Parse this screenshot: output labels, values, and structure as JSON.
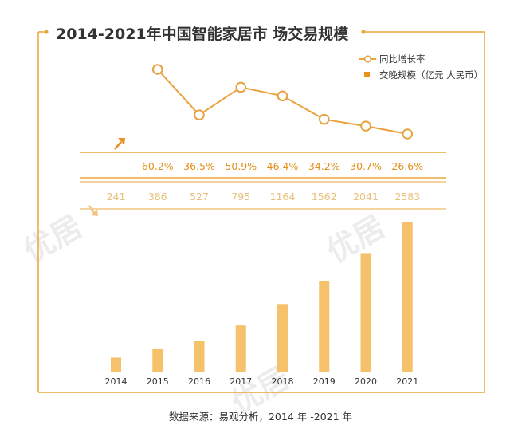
{
  "chart_data": {
    "type": "bar+line",
    "title": "2014-2021年中国智能家居市 场交易规模",
    "categories": [
      "2014",
      "2015",
      "2016",
      "2017",
      "2018",
      "2019",
      "2020",
      "2021"
    ],
    "series": [
      {
        "name": "交晚规模（亿元 人民币）",
        "type": "bar",
        "values": [
          241,
          386,
          527,
          795,
          1164,
          1562,
          2041,
          2583
        ],
        "labels": [
          "241",
          "386",
          "527",
          "795",
          "1164",
          "1562",
          "2041",
          "2583"
        ]
      },
      {
        "name": "同比增长率",
        "type": "line",
        "values": [
          null,
          60.2,
          36.5,
          50.9,
          46.4,
          34.2,
          30.7,
          26.6
        ],
        "labels": [
          "",
          "60.2%",
          "36.5%",
          "50.9%",
          "46.4%",
          "34.2%",
          "30.7%",
          "26.6%"
        ]
      }
    ],
    "bar_ylim": [
      0,
      2800
    ],
    "line_ylim": [
      20,
      65
    ],
    "legend_position": "top-right"
  },
  "source_text": "数据来源：易观分析，2014 年 -2021 年",
  "watermark_text": "优居",
  "colors": {
    "frame": "#e9a73b",
    "line": "#e8a23e",
    "bar": "#f5c16b",
    "legend_bar": "#e8921c",
    "pct_text": "#e2901a",
    "val_text": "#e9c07c",
    "arrow_up": "#e89224",
    "arrow_down": "#f3c582"
  }
}
